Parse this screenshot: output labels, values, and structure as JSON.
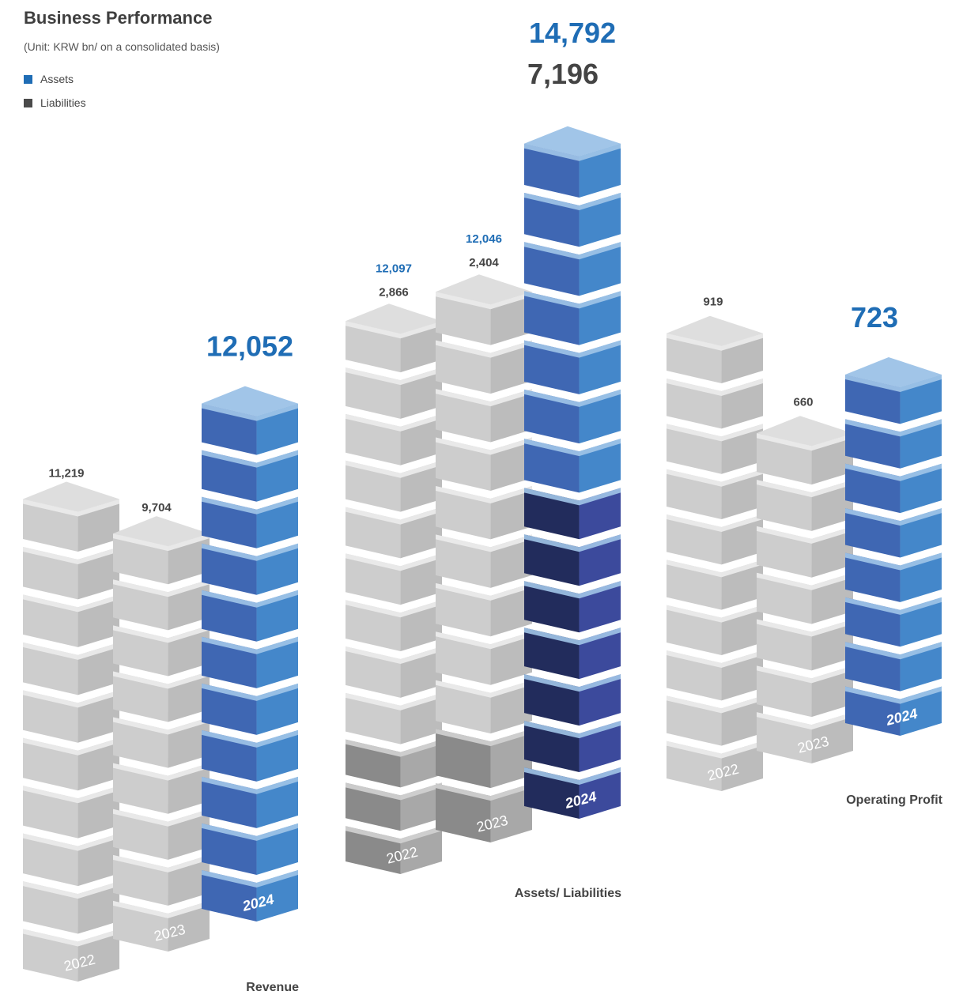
{
  "header": {
    "title": "Business Performance",
    "unit_note": "(Unit: KRW bn/ on a consolidated basis)"
  },
  "legend": [
    {
      "label": "Assets",
      "color": "#1f6db5"
    },
    {
      "label": "Liabilities",
      "color": "#4a4a4a"
    }
  ],
  "colors": {
    "highlight_text": "#1f6db5",
    "label_text": "#444444",
    "gray_block": "#cfcfcf",
    "dark_gray_block": "#8a8a8a",
    "blue_block": "#3e6fc0",
    "navy_block": "#232f62"
  },
  "chart_data": [
    {
      "type": "bar",
      "title": "Revenue",
      "categories": [
        "2022",
        "2023",
        "2024"
      ],
      "series": [
        {
          "values": [
            11219,
            9704,
            12052
          ]
        }
      ],
      "value_labels": [
        "11,219",
        "9,704",
        "12,052"
      ]
    },
    {
      "type": "bar",
      "title": "Assets/ Liabilities",
      "categories": [
        "2022",
        "2023",
        "2024"
      ],
      "series": [
        {
          "name": "Assets",
          "values": [
            12097,
            12046,
            14792
          ],
          "labels": [
            "12,097",
            "12,046",
            "14,792"
          ]
        },
        {
          "name": "Liabilities",
          "values": [
            2866,
            2404,
            7196
          ],
          "labels": [
            "2,866",
            "2,404",
            "7,196"
          ]
        }
      ]
    },
    {
      "type": "bar",
      "title": "Operating Profit",
      "categories": [
        "2022",
        "2023",
        "2024"
      ],
      "series": [
        {
          "values": [
            919,
            660,
            723
          ]
        }
      ],
      "value_labels": [
        "919",
        "660",
        "723"
      ]
    }
  ]
}
